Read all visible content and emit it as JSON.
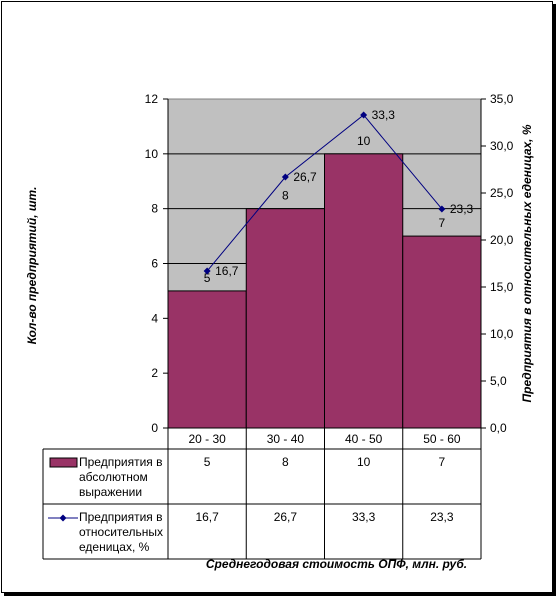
{
  "chart_data": {
    "type": "bar",
    "categories": [
      "20 - 30",
      "30 - 40",
      "40 - 50",
      "50 - 60"
    ],
    "series": [
      {
        "name_lines": [
          "Предприятия в",
          "абсолютном",
          "выражении"
        ],
        "type": "bar",
        "axis": "left",
        "values": [
          5,
          8,
          10,
          7
        ],
        "value_labels": [
          "5",
          "8",
          "10",
          "7"
        ],
        "color": "#993366"
      },
      {
        "name_lines": [
          "Предприятия в",
          "относительных",
          "еденицах, %"
        ],
        "type": "line",
        "axis": "right",
        "values": [
          16.7,
          26.7,
          33.3,
          23.3
        ],
        "value_labels": [
          "16,7",
          "26,7",
          "33,3",
          "23,3"
        ],
        "color": "#000080"
      }
    ],
    "xlabel": "Среднегодовая стоимость ОПФ, млн. руб.",
    "ylabel": "Кол-во предприятий, шт.",
    "y2label": "Предприятия в относительных еденицах, %",
    "ylim": [
      0,
      12
    ],
    "y2lim": [
      0,
      35
    ],
    "yticks": [
      "0",
      "2",
      "4",
      "6",
      "8",
      "10",
      "12"
    ],
    "y2ticks": [
      "0,0",
      "5,0",
      "10,0",
      "15,0",
      "20,0",
      "25,0",
      "30,0",
      "35,0"
    ],
    "grid": true,
    "plot_background": "#c0c0c0",
    "legend": "data-table"
  }
}
